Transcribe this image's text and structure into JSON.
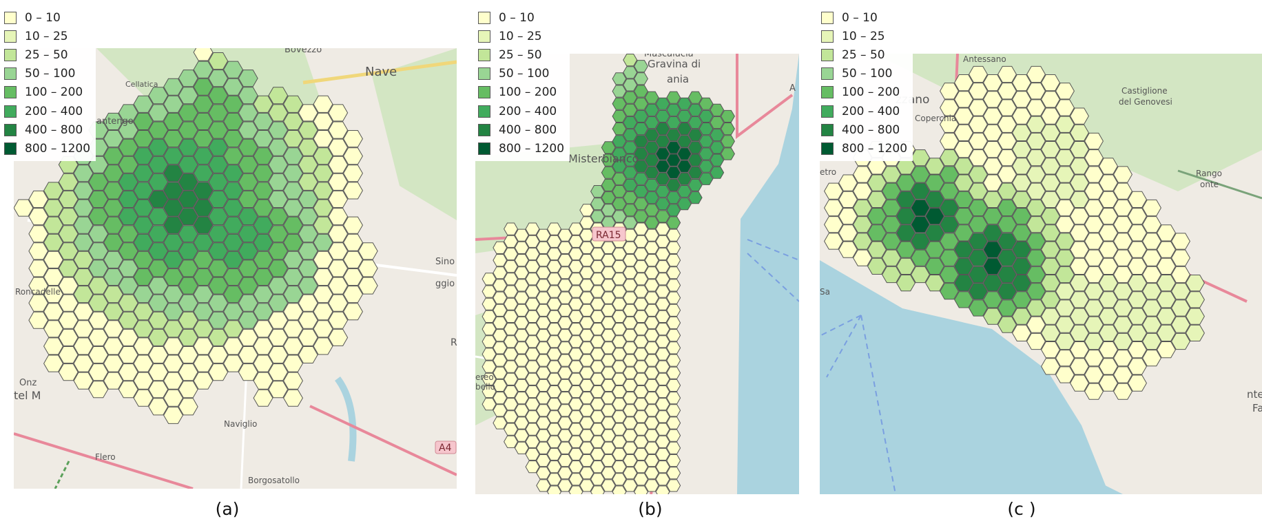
{
  "legend": {
    "classes": [
      {
        "label": "0 – 10",
        "color": "#ffffcc"
      },
      {
        "label": "10 – 25",
        "color": "#e6f5b8"
      },
      {
        "label": "25 – 50",
        "color": "#c2e699"
      },
      {
        "label": "50 – 100",
        "color": "#99d594"
      },
      {
        "label": "100 – 200",
        "color": "#66bd63"
      },
      {
        "label": "200 – 400",
        "color": "#41ab5d"
      },
      {
        "label": "400 – 800",
        "color": "#238443"
      },
      {
        "label": "800 – 1200",
        "color": "#005a32"
      }
    ]
  },
  "colors": {
    "map_land": "#efebe4",
    "map_green": "#d3e6c3",
    "sea": "#aad3df",
    "road_major": "#e8889a",
    "road_minor": "#ffffff",
    "hex_stroke": "#555555"
  },
  "panels": [
    {
      "caption": "(a)",
      "places": [
        "Bovezzo",
        "Nave",
        "Cellatica",
        "antengo",
        "Roncadelle",
        "Onz",
        "tel M",
        "Naviglio",
        "Flero",
        "Borgosatollo",
        "Sino Se",
        "ggio M",
        "R",
        "A4"
      ]
    },
    {
      "caption": "(b)",
      "places": [
        "Mascalucia",
        "Gravina di",
        "ania",
        "Misterbianco",
        "RA15",
        "A",
        "ereo",
        "bello"
      ]
    },
    {
      "caption": "(c )",
      "places": [
        "Antessano",
        "Castiglione",
        "del Genovesi",
        "zzano",
        "Coperchia",
        "etro",
        "Sa",
        "Rango",
        "onte",
        "nteca",
        "Faia"
      ]
    }
  ]
}
